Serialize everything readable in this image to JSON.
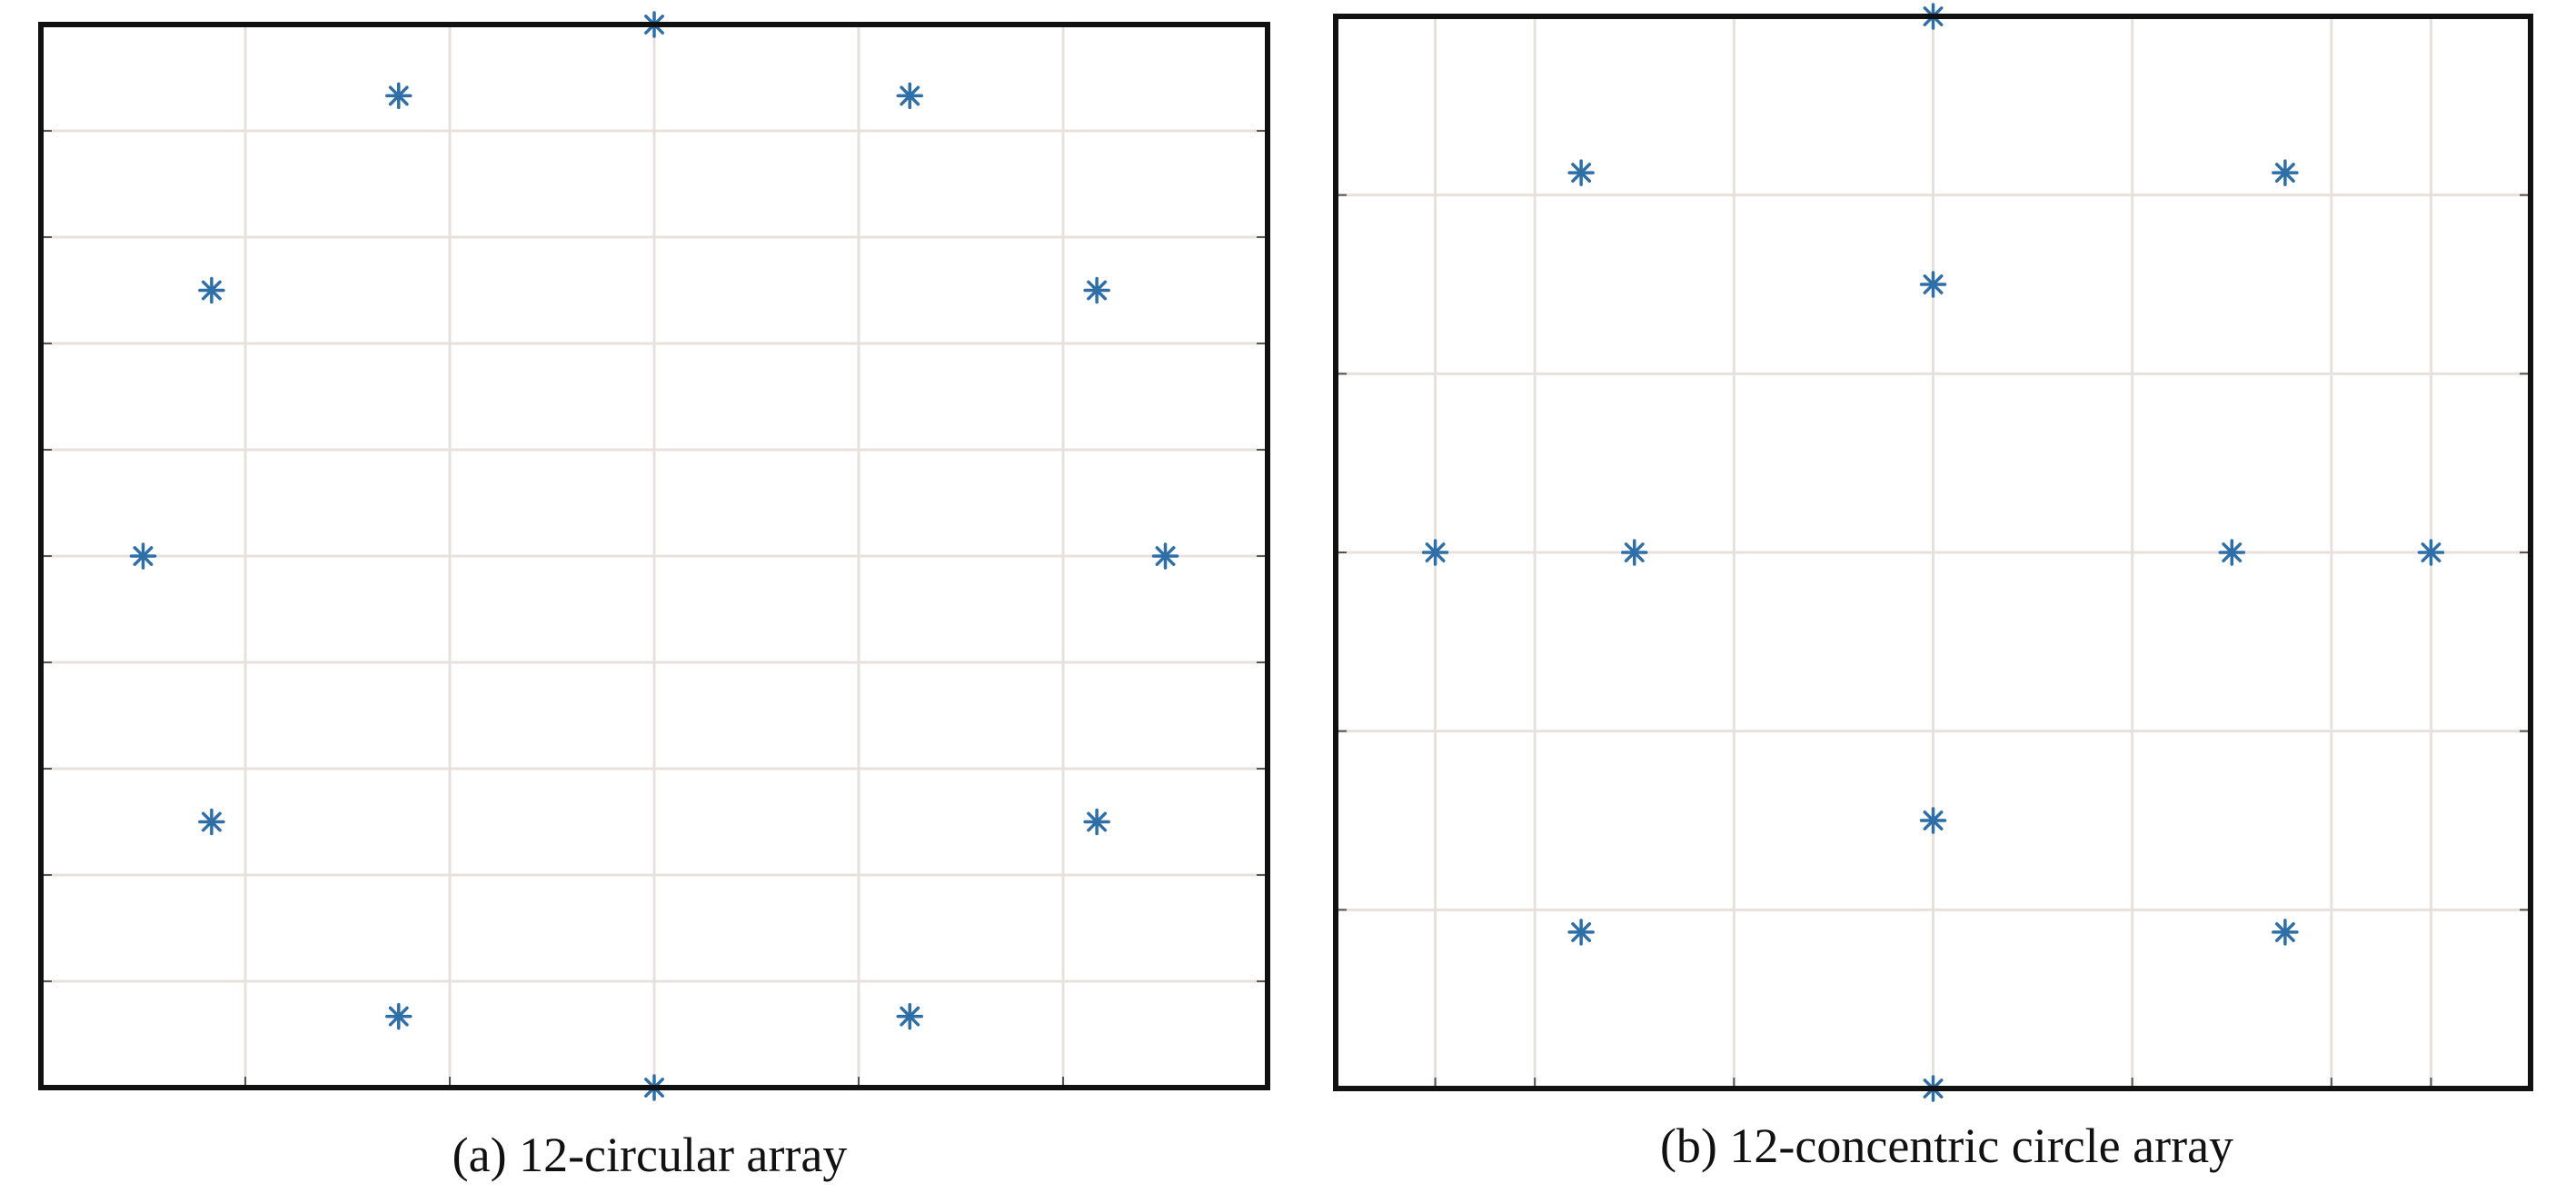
{
  "captions": {
    "a": "(a) 12-circular array",
    "b": "(b) 12-concentric circle array"
  },
  "colors": {
    "marker": "#2f6fa8",
    "grid": "#e8e0dc",
    "frame": "#111111"
  },
  "chart_data": [
    {
      "type": "scatter",
      "title": "",
      "caption": "(a) 12-circular array",
      "marker": "asterisk",
      "grid": true,
      "xlim": [
        -1.2,
        1.2
      ],
      "ylim": [
        -1.0,
        1.0
      ],
      "x_gridlines": [
        -0.8,
        -0.4,
        0.0,
        0.4,
        0.8
      ],
      "y_gridlines": [
        0.8,
        0.6,
        0.4,
        0.2,
        0.0,
        -0.2,
        -0.4,
        -0.6,
        -0.8
      ],
      "points": [
        {
          "x": 0.0,
          "y": 1.0
        },
        {
          "x": 0.5,
          "y": 0.866
        },
        {
          "x": 0.866,
          "y": 0.5
        },
        {
          "x": 1.0,
          "y": 0.0
        },
        {
          "x": 0.866,
          "y": -0.5
        },
        {
          "x": 0.5,
          "y": -0.866
        },
        {
          "x": 0.0,
          "y": -1.0
        },
        {
          "x": -0.5,
          "y": -0.866
        },
        {
          "x": -0.866,
          "y": -0.5
        },
        {
          "x": -1.0,
          "y": 0.0
        },
        {
          "x": -0.866,
          "y": 0.5
        },
        {
          "x": -0.5,
          "y": 0.866
        }
      ]
    },
    {
      "type": "scatter",
      "title": "",
      "caption": "(b) 12-concentric circle array",
      "marker": "asterisk",
      "grid": true,
      "xlim": [
        -1.2,
        1.2
      ],
      "ylim": [
        -1.2,
        1.2
      ],
      "x_gridlines": [
        -1.0,
        -0.8,
        -0.4,
        0.0,
        0.4,
        0.8,
        1.0
      ],
      "y_gridlines": [
        0.8,
        0.4,
        0.0,
        -0.4,
        -0.8
      ],
      "points": [
        {
          "x": 0.0,
          "y": 1.2
        },
        {
          "x": 0.707,
          "y": 0.85
        },
        {
          "x": 1.0,
          "y": 0.0
        },
        {
          "x": 0.707,
          "y": -0.85
        },
        {
          "x": 0.0,
          "y": -1.2
        },
        {
          "x": -0.707,
          "y": -0.85
        },
        {
          "x": -1.0,
          "y": 0.0
        },
        {
          "x": -0.707,
          "y": 0.85
        },
        {
          "x": 0.0,
          "y": 0.6
        },
        {
          "x": 0.6,
          "y": 0.0
        },
        {
          "x": 0.0,
          "y": -0.6
        },
        {
          "x": -0.6,
          "y": 0.0
        }
      ]
    }
  ]
}
